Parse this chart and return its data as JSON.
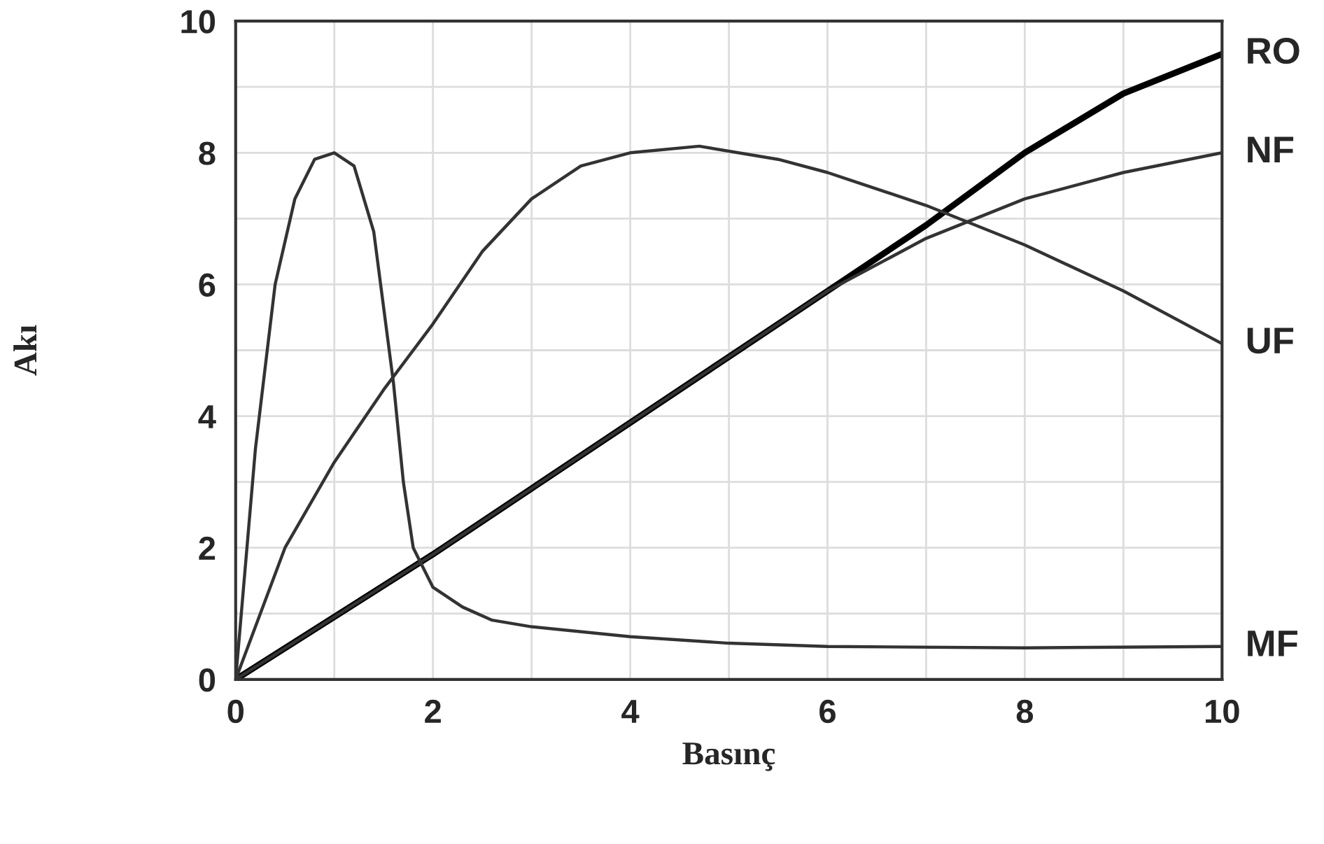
{
  "chart_data": {
    "type": "line",
    "xlabel": "Basınç",
    "ylabel": "Akı",
    "xlim": [
      0,
      10
    ],
    "ylim": [
      0,
      10
    ],
    "xticks": [
      0,
      {
        "value": 1,
        "label": null
      },
      2,
      {
        "value": 3,
        "label": null
      },
      4,
      {
        "value": 5,
        "label": null
      },
      6,
      {
        "value": 7,
        "label": null
      },
      8,
      {
        "value": 9,
        "label": null
      },
      10
    ],
    "yticks": [
      0,
      {
        "value": 1,
        "label": null
      },
      2,
      {
        "value": 3,
        "label": null
      },
      4,
      {
        "value": 5,
        "label": null
      },
      6,
      {
        "value": 7,
        "label": null
      },
      8,
      {
        "value": 9,
        "label": null
      },
      10
    ],
    "grid": true,
    "legend": false,
    "marker": "none",
    "line_style": "solid",
    "series": [
      {
        "name": "RO",
        "color": "#000000",
        "x": [
          0,
          2,
          4,
          6,
          7,
          8,
          9,
          10
        ],
        "values": [
          0,
          1.9,
          3.9,
          5.9,
          6.9,
          8.0,
          8.9,
          9.5
        ]
      },
      {
        "name": "NF",
        "color": "#333333",
        "x": [
          0,
          2,
          4,
          5.5,
          6,
          7,
          8,
          9,
          10
        ],
        "values": [
          0,
          1.9,
          3.9,
          5.4,
          5.9,
          6.7,
          7.3,
          7.7,
          8.0
        ]
      },
      {
        "name": "UF",
        "color": "#333333",
        "x": [
          0,
          0.5,
          1,
          1.5,
          2,
          2.5,
          3,
          3.5,
          4,
          4.7,
          5.5,
          6,
          7,
          8,
          9,
          10
        ],
        "values": [
          0,
          2,
          3.3,
          4.4,
          5.4,
          6.5,
          7.3,
          7.8,
          8.0,
          8.1,
          7.9,
          7.7,
          7.2,
          6.6,
          5.9,
          5.1
        ]
      },
      {
        "name": "MF",
        "color": "#333333",
        "x": [
          0,
          0.2,
          0.4,
          0.6,
          0.8,
          1.0,
          1.2,
          1.4,
          1.6,
          1.7,
          1.8,
          2.0,
          2.3,
          2.6,
          3,
          4,
          5,
          6,
          8,
          10
        ],
        "values": [
          0,
          3.5,
          6,
          7.3,
          7.9,
          8.0,
          7.8,
          6.8,
          4.5,
          3.0,
          2.0,
          1.4,
          1.1,
          0.9,
          0.8,
          0.65,
          0.55,
          0.5,
          0.48,
          0.5
        ]
      }
    ]
  }
}
